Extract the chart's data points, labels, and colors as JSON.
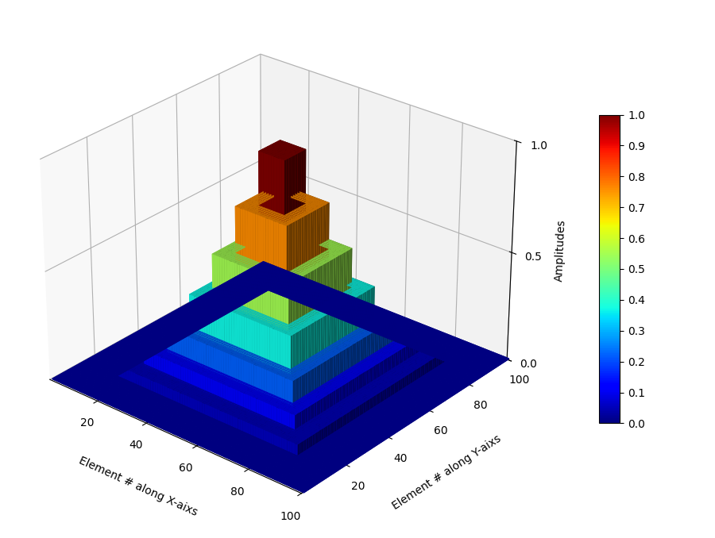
{
  "N": 100,
  "xlabel": "Element # along X-aixs",
  "ylabel": "Element # along Y-aixs",
  "zlabel": "Amplitudes",
  "colorbar_ticks": [
    0,
    0.1,
    0.2,
    0.3,
    0.4,
    0.5,
    0.6,
    0.7,
    0.8,
    0.9,
    1.0
  ],
  "steps": [
    {
      "r_max": 5,
      "amplitude": 1.0
    },
    {
      "r_max": 10,
      "amplitude": 0.76
    },
    {
      "r_max": 15,
      "amplitude": 0.55
    },
    {
      "r_max": 20,
      "amplitude": 0.37
    },
    {
      "r_max": 25,
      "amplitude": 0.22
    },
    {
      "r_max": 30,
      "amplitude": 0.12
    },
    {
      "r_max": 36,
      "amplitude": 0.055
    },
    {
      "r_max": 50,
      "amplitude": 0.0
    }
  ],
  "elev": 28,
  "azim": -50,
  "figsize": [
    9.0,
    6.78
  ],
  "dpi": 100
}
